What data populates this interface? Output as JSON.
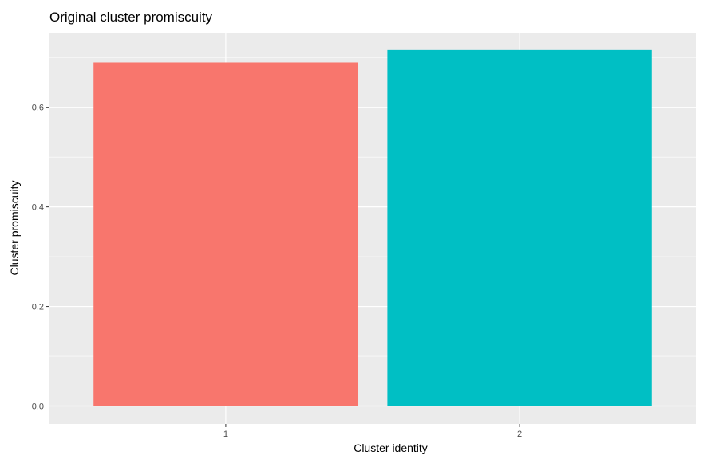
{
  "chart_data": {
    "type": "bar",
    "title": "Original cluster promiscuity",
    "xlabel": "Cluster identity",
    "ylabel": "Cluster promiscuity",
    "categories": [
      "1",
      "2"
    ],
    "values": [
      0.69,
      0.715
    ],
    "colors": [
      "#F8766D",
      "#00BFC4"
    ],
    "yticks": [
      0.0,
      0.2,
      0.4,
      0.6
    ],
    "ytick_labels": [
      "0.0",
      "0.2",
      "0.4",
      "0.6"
    ],
    "ylim": [
      -0.036,
      0.75
    ],
    "grid": true,
    "legend": "none",
    "panel_background": "#EBEBEB",
    "grid_color": "#FFFFFF"
  }
}
